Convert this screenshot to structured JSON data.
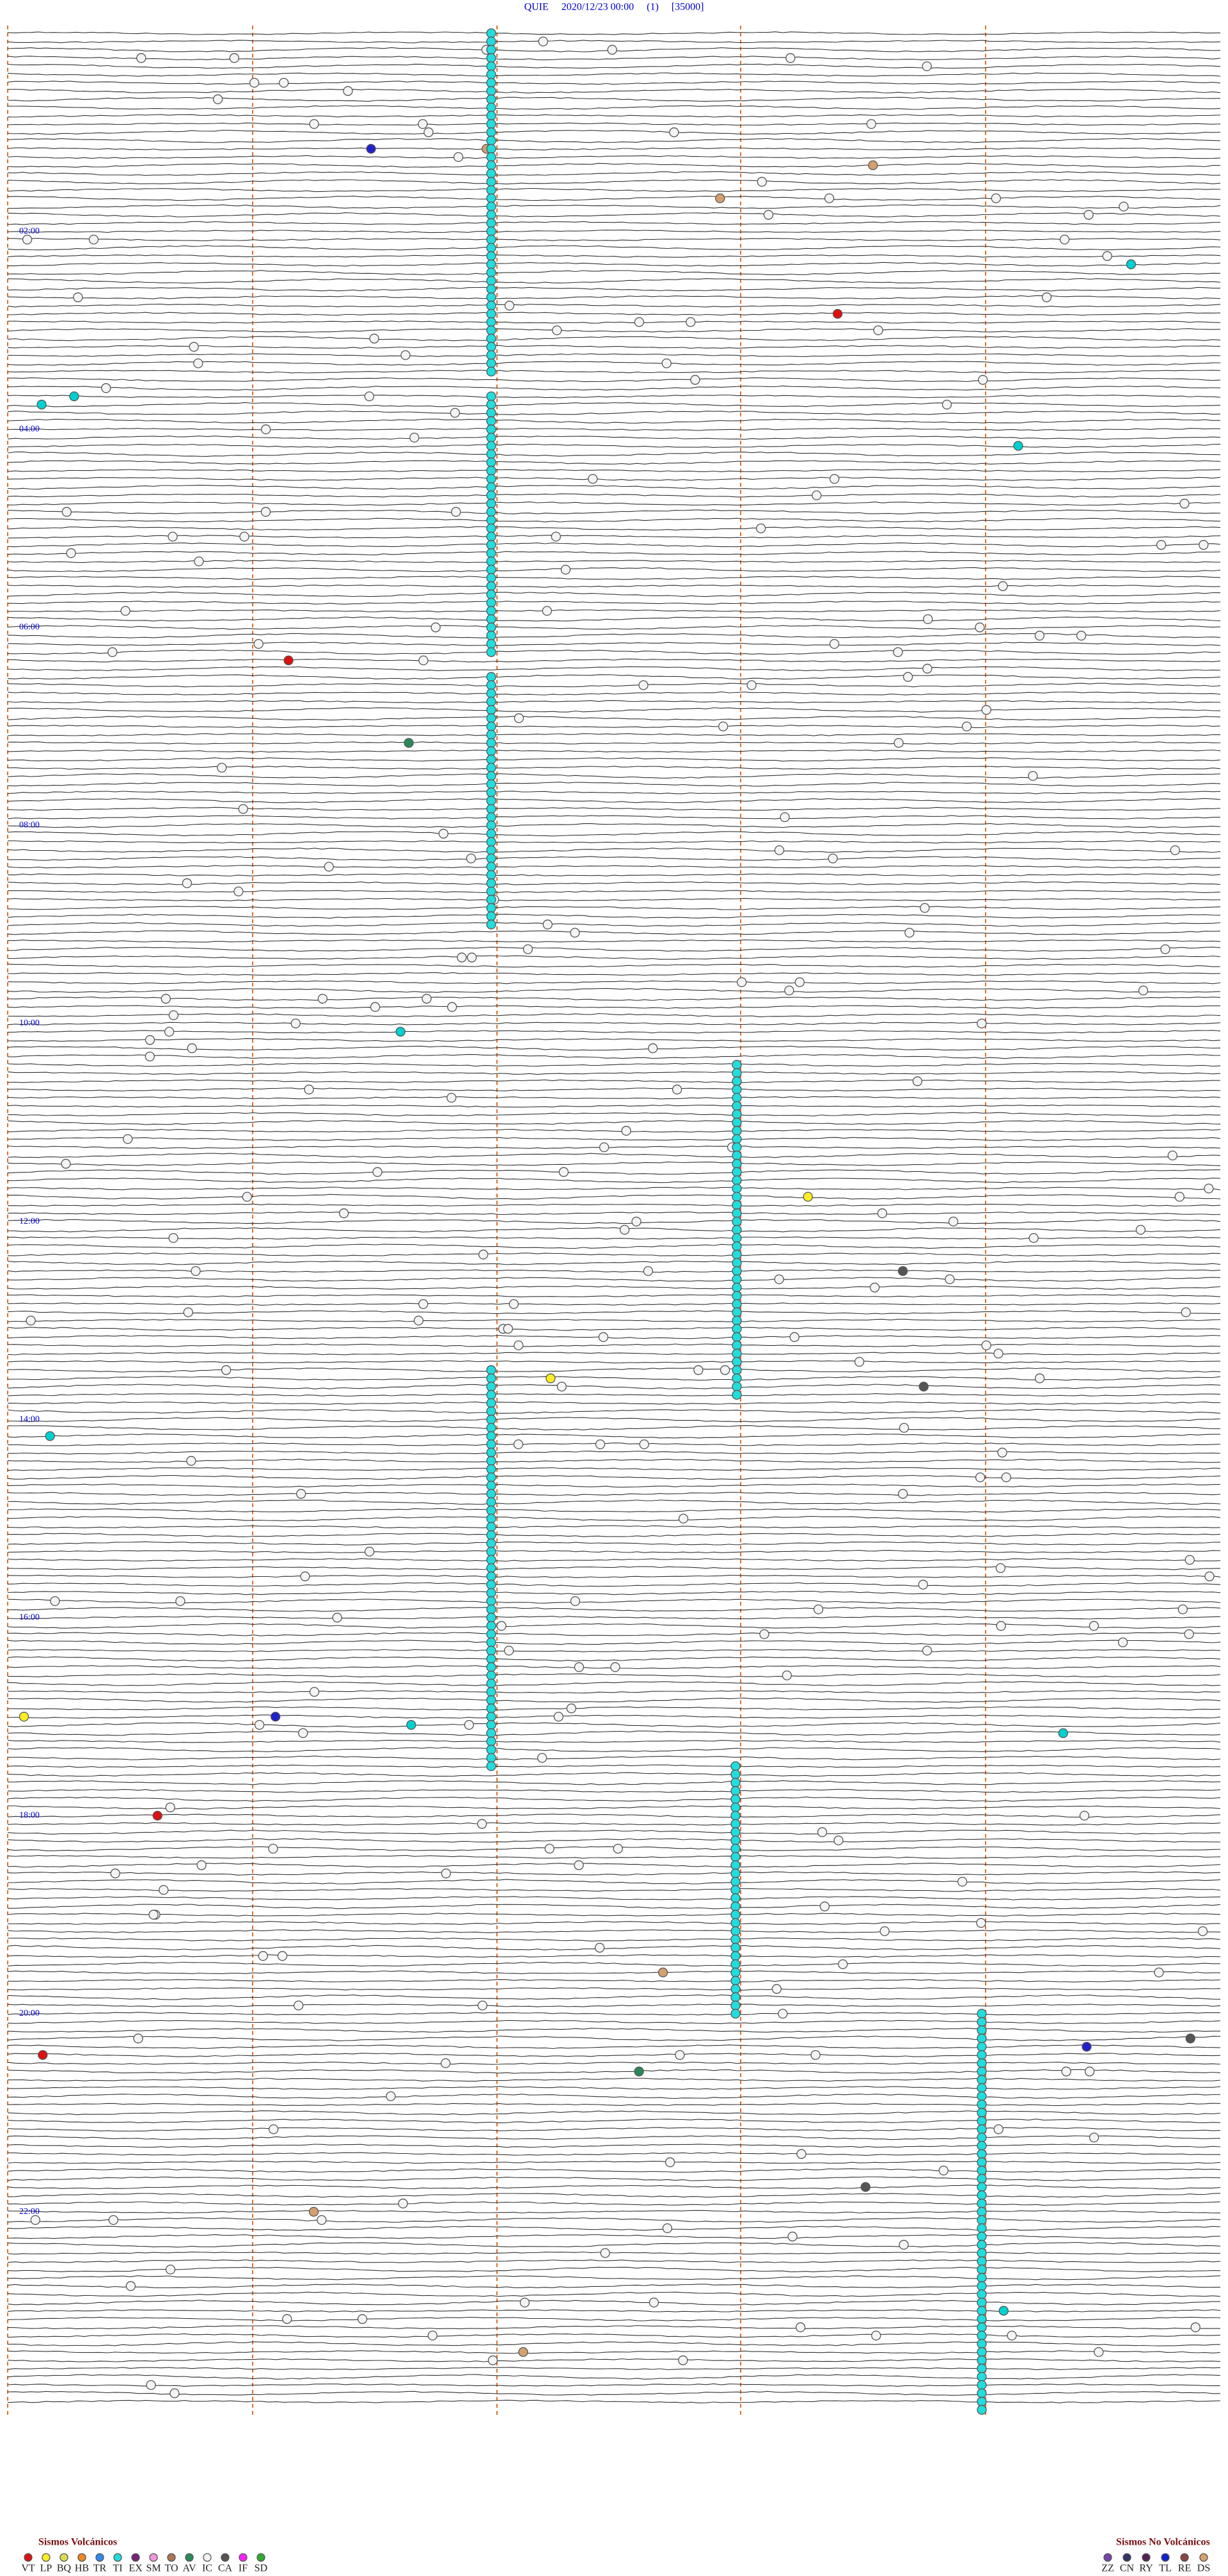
{
  "header": {
    "title": "QUIE     2020/12/23 00:00     (1)     [35000]"
  },
  "time_labels": [
    "02:00",
    "04:00",
    "06:00",
    "08:00",
    "10:00",
    "12:00",
    "14:00",
    "16:00",
    "18:00",
    "20:00",
    "22:00"
  ],
  "legend": {
    "volcanic": {
      "title": "Sismos Volcánicos",
      "codes": [
        "VT",
        "LP",
        "BQ",
        "HB",
        "TR",
        "TI",
        "EX",
        "SM",
        "TO",
        "AV",
        "IC",
        "CA",
        "IF",
        "SD"
      ]
    },
    "non_volcanic": {
      "title": "Sismos No Volcánicos",
      "codes": [
        "ZZ",
        "CN",
        "RY",
        "TL",
        "RE",
        "DS"
      ]
    }
  }
}
